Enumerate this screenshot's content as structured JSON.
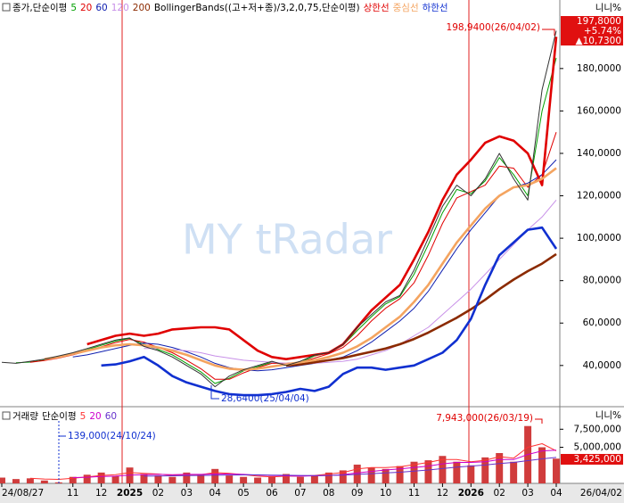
{
  "chart_data": [
    {
      "type": "line",
      "ma_label": "종가,단순이평",
      "bb_label": "BollingerBands((고+저+종)/3,2,0,75,단순이평)",
      "unit_toggle": "니니%",
      "watermark": "MY tRadar",
      "categories": [
        "24/08/27",
        null,
        null,
        null,
        null,
        "11",
        null,
        "12",
        null,
        "2025",
        null,
        "02",
        null,
        "03",
        null,
        "04",
        null,
        "05",
        null,
        "06",
        null,
        "07",
        null,
        "08",
        null,
        "09",
        null,
        "10",
        null,
        "11",
        null,
        "12",
        null,
        "2026",
        null,
        "02",
        null,
        "03",
        null,
        "04"
      ],
      "end_date": "26/04/02",
      "color": "#333333",
      "values": [
        41500,
        41000,
        42000,
        43000,
        44500,
        46000,
        48000,
        50000,
        52000,
        53000,
        49000,
        47000,
        44000,
        40000,
        36000,
        30000,
        35000,
        38000,
        40000,
        42000,
        40000,
        42000,
        45000,
        46000,
        50000,
        58000,
        64000,
        70000,
        73000,
        85000,
        100000,
        115000,
        125000,
        120000,
        128000,
        140000,
        128000,
        118000,
        170000,
        197800
      ],
      "series": [
        {
          "name": "5",
          "color": "#00a000",
          "values": [
            null,
            41300,
            41600,
            42500,
            43800,
            45500,
            47500,
            49500,
            51500,
            52800,
            50000,
            47500,
            45000,
            41000,
            37000,
            31500,
            34000,
            37500,
            39500,
            41500,
            40500,
            41500,
            44500,
            46000,
            49500,
            56500,
            63000,
            69000,
            72500,
            83000,
            97000,
            112000,
            123000,
            121000,
            127000,
            138000,
            130000,
            120000,
            160000,
            185000
          ]
        },
        {
          "name": "20",
          "color": "#e00000",
          "values": [
            null,
            null,
            41500,
            42300,
            43500,
            45000,
            46800,
            48800,
            50800,
            52300,
            51000,
            48500,
            46000,
            42500,
            38500,
            33500,
            33500,
            36500,
            39000,
            41000,
            41000,
            41500,
            43500,
            45500,
            48500,
            54000,
            61000,
            67000,
            71500,
            79000,
            92000,
            107000,
            119000,
            122000,
            125000,
            134000,
            133000,
            124000,
            130000,
            150000
          ]
        },
        {
          "name": "60",
          "color": "#1020b0",
          "values": [
            null,
            null,
            null,
            null,
            null,
            44000,
            45000,
            46500,
            48000,
            49500,
            50500,
            50000,
            48500,
            46500,
            44000,
            41000,
            39000,
            38000,
            37500,
            38000,
            39000,
            40000,
            41000,
            42500,
            44000,
            47000,
            51000,
            56000,
            61000,
            67000,
            75000,
            85000,
            95000,
            104000,
            112000,
            120000,
            124000,
            126000,
            130000,
            137000
          ]
        },
        {
          "name": "120",
          "color": "#c890e8",
          "values": [
            null,
            null,
            null,
            null,
            null,
            null,
            null,
            null,
            null,
            null,
            48000,
            48000,
            47500,
            47000,
            46000,
            44500,
            43500,
            42500,
            42000,
            41500,
            41000,
            41000,
            41000,
            41500,
            42000,
            43000,
            45000,
            47000,
            50000,
            54000,
            58000,
            64000,
            70000,
            76000,
            83000,
            90000,
            97000,
            104000,
            110000,
            118000
          ]
        },
        {
          "name": "200",
          "color": "#8b2a00",
          "values": [
            null,
            null,
            null,
            null,
            null,
            null,
            null,
            null,
            null,
            null,
            null,
            null,
            null,
            null,
            null,
            null,
            null,
            null,
            null,
            null,
            40000,
            40500,
            41500,
            42500,
            43500,
            45000,
            46500,
            48000,
            50000,
            52500,
            55500,
            59000,
            62500,
            66500,
            71000,
            76000,
            80500,
            84500,
            88000,
            92500
          ]
        },
        {
          "name": "상한선",
          "color": "#e00000",
          "values": [
            null,
            null,
            null,
            null,
            null,
            null,
            50000,
            52000,
            54000,
            55000,
            54000,
            55000,
            57000,
            57500,
            58000,
            58000,
            57000,
            52000,
            47000,
            44000,
            43000,
            44000,
            45000,
            46000,
            50000,
            58000,
            66000,
            72000,
            78000,
            90000,
            103000,
            118000,
            130000,
            137000,
            145000,
            148000,
            146000,
            140000,
            125000,
            195000
          ]
        },
        {
          "name": "중심선",
          "color": "#f4a460",
          "values": [
            null,
            null,
            null,
            43000,
            44000,
            45500,
            47000,
            48500,
            49500,
            50000,
            49500,
            48500,
            47000,
            45000,
            42500,
            40000,
            38500,
            38000,
            38500,
            39500,
            40500,
            41500,
            42500,
            44000,
            46000,
            49000,
            53000,
            58000,
            63000,
            70000,
            78000,
            88000,
            98000,
            106000,
            114000,
            120000,
            124000,
            125000,
            128000,
            133000
          ]
        },
        {
          "name": "하한선",
          "color": "#1030d0",
          "values": [
            null,
            null,
            null,
            null,
            null,
            null,
            null,
            40000,
            40500,
            42000,
            44000,
            40000,
            35000,
            32000,
            30000,
            28000,
            26500,
            26000,
            26000,
            26500,
            27500,
            29000,
            28000,
            30000,
            36000,
            39000,
            39000,
            38000,
            39000,
            40000,
            43000,
            46000,
            52000,
            62000,
            78000,
            92000,
            98000,
            104000,
            105000,
            95000
          ]
        }
      ],
      "ylim": [
        21000,
        206000
      ],
      "yticks": [
        {
          "value": 40000,
          "label": "40,0000"
        },
        {
          "value": 60000,
          "label": "60,0000"
        },
        {
          "value": 80000,
          "label": "80,0000"
        },
        {
          "value": 100000,
          "label": "100,0000"
        },
        {
          "value": 120000,
          "label": "120,0000"
        },
        {
          "value": 140000,
          "label": "140,0000"
        },
        {
          "value": 160000,
          "label": "160,0000"
        },
        {
          "value": 180000,
          "label": "180,0000"
        }
      ],
      "high_label": "198,9400(26/04/02)",
      "low_label": "28,6400(25/04/04)",
      "last_box": [
        "197,8000",
        "+5.74%",
        "▲10,7300"
      ]
    },
    {
      "type": "bar",
      "title": "거래량",
      "ma_label": "단순이평",
      "unit_toggle": "니니%",
      "color": "#d03c3c",
      "values": [
        800000,
        600000,
        700000,
        400000,
        139000,
        900000,
        1200000,
        1500000,
        1000000,
        2200000,
        1300000,
        1100000,
        900000,
        1500000,
        1200000,
        2000000,
        1100000,
        900000,
        800000,
        1000000,
        1300000,
        900000,
        1100000,
        1500000,
        1800000,
        2600000,
        2200000,
        2000000,
        2400000,
        3000000,
        3200000,
        3800000,
        3000000,
        2500000,
        3600000,
        4200000,
        3000000,
        7943000,
        5000000,
        3425000
      ],
      "series": [
        {
          "name": "5",
          "color": "#ff3333",
          "values": [
            null,
            null,
            700000,
            600000,
            550000,
            700000,
            900000,
            1100000,
            1200000,
            1500000,
            1400000,
            1300000,
            1100000,
            1200000,
            1200000,
            1500000,
            1400000,
            1200000,
            1000000,
            900000,
            1000000,
            1000000,
            1100000,
            1300000,
            1500000,
            2000000,
            2200000,
            2200000,
            2300000,
            2600000,
            2900000,
            3300000,
            3300000,
            3000000,
            3200000,
            3700000,
            3500000,
            5000000,
            5500000,
            4500000
          ]
        },
        {
          "name": "20",
          "color": "#cc00cc",
          "values": [
            null,
            null,
            null,
            null,
            null,
            800000,
            850000,
            950000,
            1000000,
            1150000,
            1200000,
            1250000,
            1200000,
            1250000,
            1250000,
            1300000,
            1300000,
            1250000,
            1150000,
            1100000,
            1050000,
            1000000,
            1050000,
            1100000,
            1200000,
            1450000,
            1650000,
            1850000,
            2000000,
            2200000,
            2400000,
            2700000,
            2900000,
            2900000,
            3000000,
            3300000,
            3300000,
            4000000,
            4500000,
            4600000
          ]
        },
        {
          "name": "60",
          "color": "#6633cc",
          "values": [
            null,
            null,
            null,
            null,
            null,
            null,
            null,
            null,
            null,
            null,
            1000000,
            1020000,
            1050000,
            1080000,
            1100000,
            1120000,
            1150000,
            1170000,
            1180000,
            1150000,
            1120000,
            1100000,
            1080000,
            1100000,
            1150000,
            1250000,
            1350000,
            1450000,
            1550000,
            1700000,
            1850000,
            2050000,
            2250000,
            2400000,
            2550000,
            2750000,
            2900000,
            3150000,
            3400000,
            3600000
          ]
        }
      ],
      "ylim": [
        0,
        8400000
      ],
      "yticks": [
        {
          "value": 5000000,
          "label": "5,000,000"
        },
        {
          "value": 7500000,
          "label": "7,500,000"
        }
      ],
      "max_label": "7,943,000(26/03/19)",
      "min_label": "139,000(24/10/24)",
      "last_box": "3,425,000"
    }
  ]
}
